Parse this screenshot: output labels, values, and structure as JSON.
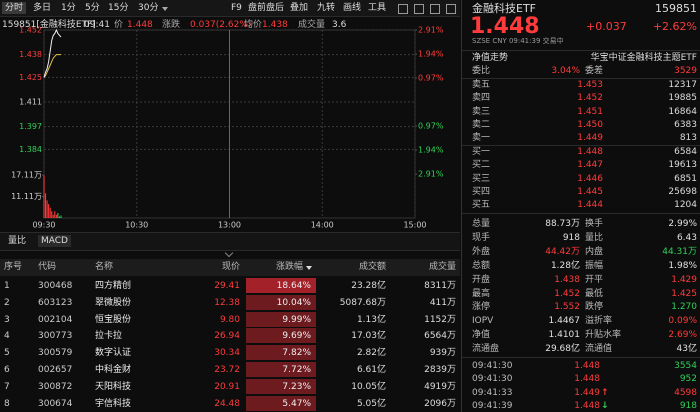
{
  "toolbar": {
    "tabs": [
      "分时",
      "多日",
      "1分",
      "5分",
      "15分",
      "30分"
    ],
    "tools": [
      "F9",
      "盘前盘后",
      "叠加",
      "九转",
      "画线",
      "工具"
    ]
  },
  "chart_header": {
    "code_name": "159851[金融科技ETF]",
    "time": "09:41",
    "price_label": "价",
    "price": "1.448",
    "change_label": "涨跌",
    "change": "0.037(2.62%)",
    "avg_label": "均价",
    "avg": "1.438",
    "volume_label": "成交量",
    "volume": "3.6"
  },
  "intraday": {
    "ylim": [
      1.37,
      1.452
    ],
    "yticks": [
      1.452,
      1.438,
      1.425,
      1.411,
      1.397,
      1.384
    ],
    "y2lim": [
      -2.91,
      2.91
    ],
    "y2ticks": [
      {
        "value": 2.91,
        "label": "2.91%"
      },
      {
        "value": 1.94,
        "label": "1.94%"
      },
      {
        "value": 0.97,
        "label": "0.97%"
      },
      {
        "value": -0.97,
        "label": "0.97%"
      },
      {
        "value": -1.94,
        "label": "1.94%"
      },
      {
        "value": -2.91,
        "label": "2.91%"
      }
    ],
    "xlim": [
      0,
      240
    ],
    "xticks": [
      {
        "value": 0,
        "label": "09:30"
      },
      {
        "value": 60,
        "label": "10:30"
      },
      {
        "value": 120,
        "label": "13:00"
      },
      {
        "value": 180,
        "label": "14:00"
      },
      {
        "value": 240,
        "label": "15:00"
      }
    ],
    "x": [
      0,
      1,
      2,
      3,
      4,
      5,
      6,
      7,
      8,
      9,
      10,
      11
    ],
    "price": [
      1.425,
      1.428,
      1.43,
      1.434,
      1.44,
      1.446,
      1.449,
      1.45,
      1.452,
      1.45,
      1.449,
      1.448
    ],
    "avg": [
      1.425,
      1.426,
      1.428,
      1.43,
      1.432,
      1.434,
      1.436,
      1.437,
      1.438,
      1.438,
      1.438,
      1.438
    ],
    "volume_lim": [
      51100,
      171100
    ],
    "volume_ticks": [
      {
        "value": 171100,
        "label": "17.11万"
      },
      {
        "value": 111100,
        "label": "11.11万"
      }
    ],
    "volume": [
      170000,
      120000,
      100000,
      90000,
      80000,
      70000,
      60000,
      70000,
      60000,
      65000,
      55000,
      58000
    ]
  },
  "indicator_tabs": [
    "量比",
    "MACD"
  ],
  "table": {
    "headers": [
      "序号",
      "代码",
      "名称",
      "现价",
      "涨跌幅",
      "成交额",
      "成交量"
    ],
    "rows": [
      [
        "1",
        "300468",
        "四方精创",
        "29.41",
        "18.64%",
        "23.28亿",
        "8311万"
      ],
      [
        "2",
        "603123",
        "翠微股份",
        "12.38",
        "10.04%",
        "5087.68万",
        "411万"
      ],
      [
        "3",
        "002104",
        "恒宝股份",
        "9.80",
        "9.99%",
        "1.13亿",
        "1152万"
      ],
      [
        "4",
        "300773",
        "拉卡拉",
        "26.94",
        "9.69%",
        "17.03亿",
        "6564万"
      ],
      [
        "5",
        "300579",
        "数字认证",
        "30.34",
        "7.82%",
        "2.82亿",
        "939万"
      ],
      [
        "6",
        "002657",
        "中科金财",
        "23.72",
        "7.72%",
        "6.61亿",
        "2839万"
      ],
      [
        "7",
        "300872",
        "天阳科技",
        "20.91",
        "7.23%",
        "10.05亿",
        "4919万"
      ],
      [
        "8",
        "300674",
        "宇信科技",
        "24.48",
        "5.47%",
        "5.05亿",
        "2096万"
      ]
    ]
  },
  "quote": {
    "name": "金融科技ETF",
    "code": "159851",
    "price": "1.448",
    "change": "+0.037",
    "change_pct": "+2.62%",
    "status": "SZSE  CNY  09:41:39  交易中",
    "nav_trend": "净值走势",
    "fund_name": "华宝中证金融科技主题ETF",
    "ratio_label": "委比",
    "ratio": "3.04%",
    "diff_label": "委差",
    "diff": "3529",
    "asks": [
      [
        "卖五",
        "1.453",
        "12317"
      ],
      [
        "卖四",
        "1.452",
        "19885"
      ],
      [
        "卖三",
        "1.451",
        "16864"
      ],
      [
        "卖二",
        "1.450",
        "6383"
      ],
      [
        "卖一",
        "1.449",
        "813"
      ]
    ],
    "bids": [
      [
        "买一",
        "1.448",
        "6584"
      ],
      [
        "买二",
        "1.447",
        "19613"
      ],
      [
        "买三",
        "1.446",
        "6851"
      ],
      [
        "买四",
        "1.445",
        "25698"
      ],
      [
        "买五",
        "1.444",
        "1204"
      ]
    ],
    "stats": [
      [
        {
          "label": "总量",
          "value": "88.73万",
          "color": "#e0e0e0"
        },
        {
          "label": "换手",
          "value": "2.99%",
          "color": "#e0e0e0"
        }
      ],
      [
        {
          "label": "现手",
          "value": "918",
          "color": "#e0e0e0"
        },
        {
          "label": "量比",
          "value": "6.43",
          "color": "#e0e0e0"
        }
      ],
      [
        {
          "label": "外盘",
          "value": "44.42万",
          "color": "#ff3b3b"
        },
        {
          "label": "内盘",
          "value": "44.31万",
          "color": "#2ed158"
        }
      ],
      [
        {
          "label": "总额",
          "value": "1.28亿",
          "color": "#e0e0e0"
        },
        {
          "label": "振幅",
          "value": "1.98%",
          "color": "#e0e0e0"
        }
      ],
      [
        {
          "label": "开盘",
          "value": "1.438",
          "color": "#ff3b3b"
        },
        {
          "label": "开平",
          "value": "1.429",
          "color": "#ff3b3b"
        }
      ],
      [
        {
          "label": "最高",
          "value": "1.452",
          "color": "#ff3b3b"
        },
        {
          "label": "最低",
          "value": "1.425",
          "color": "#ff3b3b"
        }
      ],
      [
        {
          "label": "涨停",
          "value": "1.552",
          "color": "#ff3b3b"
        },
        {
          "label": "跌停",
          "value": "1.270",
          "color": "#2ed158"
        }
      ],
      [
        {
          "label": "IOPV",
          "value": "1.4467",
          "color": "#e0e0e0"
        },
        {
          "label": "溢折率",
          "value": "0.09%",
          "color": "#ff3b3b"
        }
      ],
      [
        {
          "label": "净值",
          "value": "1.4101",
          "color": "#e0e0e0"
        },
        {
          "label": "升贴水率",
          "value": "2.69%",
          "color": "#ff3b3b"
        }
      ],
      [
        {
          "label": "流通盘",
          "value": "29.68亿",
          "color": "#e0e0e0"
        },
        {
          "label": "流通值",
          "value": "43亿",
          "color": "#e0e0e0"
        }
      ]
    ],
    "trades": [
      {
        "time": "09:41:30",
        "price": "1.448",
        "arrow": "",
        "volume": "3554",
        "color": "#2ed158"
      },
      {
        "time": "09:41:30",
        "price": "1.448",
        "arrow": "",
        "volume": "952",
        "color": "#2ed158"
      },
      {
        "time": "09:41:33",
        "price": "1.449",
        "arrow": "↑",
        "volume": "4598",
        "color": "#ff3b3b"
      },
      {
        "time": "09:41:39",
        "price": "1.448",
        "arrow": "↓",
        "volume": "918",
        "color": "#2ed158"
      }
    ]
  }
}
